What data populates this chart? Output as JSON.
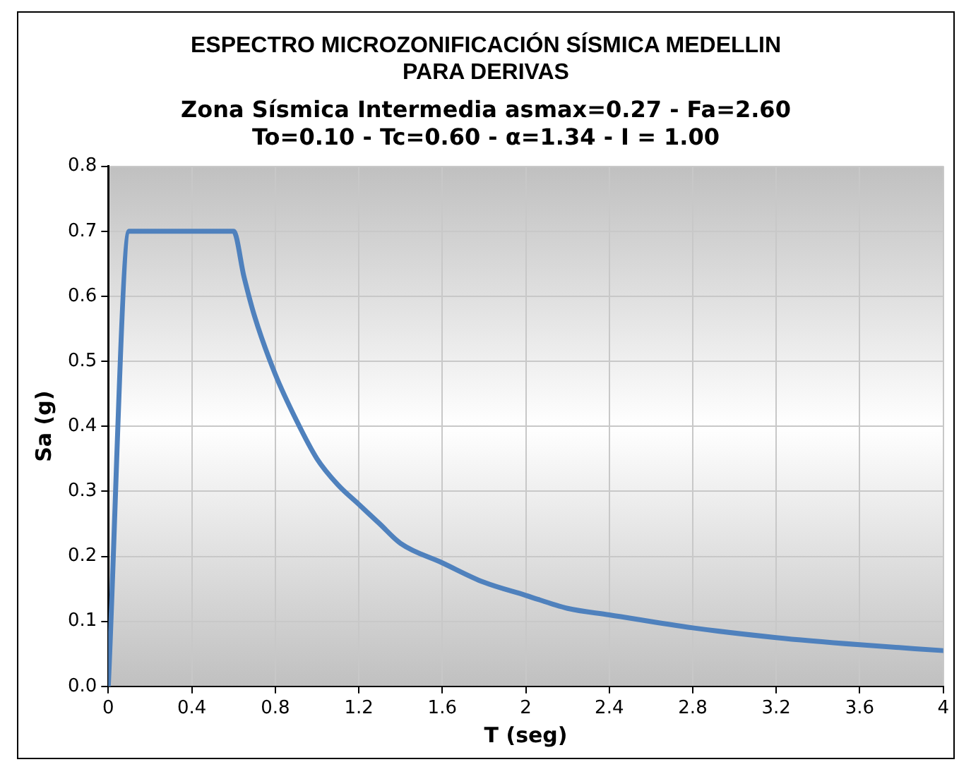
{
  "chart_data": {
    "type": "line",
    "title": [
      "ESPECTRO MICROZONIFICACIÓN SÍSMICA MEDELLIN",
      "PARA DERIVAS"
    ],
    "subtitle": [
      "Zona Sísmica Intermedia asmax=0.27 - Fa=2.60",
      "To=0.10 - Tc=0.60 - α=1.34 - I = 1.00"
    ],
    "xlabel": "T (seg)",
    "ylabel": "Sa (g)",
    "x": [
      0,
      0.1,
      0.6,
      0.65,
      0.7,
      0.8,
      0.9,
      1.0,
      1.1,
      1.2,
      1.3,
      1.4,
      1.6,
      1.8,
      2.0,
      2.2,
      2.4,
      2.8,
      3.2,
      3.6,
      4.0
    ],
    "series": [
      {
        "color": "#4f81bd",
        "values": [
          0,
          0.7,
          0.7,
          0.63,
          0.57,
          0.48,
          0.41,
          0.35,
          0.31,
          0.28,
          0.25,
          0.22,
          0.19,
          0.16,
          0.14,
          0.12,
          0.11,
          0.09,
          0.075,
          0.064,
          0.055
        ]
      }
    ],
    "xlim": [
      0,
      4
    ],
    "xticks": [
      0,
      0.4,
      0.8,
      1.2,
      1.6,
      2,
      2.4,
      2.8,
      3.2,
      3.6,
      4
    ],
    "ylim": [
      0,
      0.8
    ],
    "yticks": [
      {
        "value": 0,
        "label": "0.0"
      },
      0.1,
      0.2,
      0.3,
      0.4,
      0.5,
      0.6,
      0.7,
      0.8
    ],
    "grid": true,
    "legend": false,
    "marker": "none",
    "line_style": "solid"
  }
}
